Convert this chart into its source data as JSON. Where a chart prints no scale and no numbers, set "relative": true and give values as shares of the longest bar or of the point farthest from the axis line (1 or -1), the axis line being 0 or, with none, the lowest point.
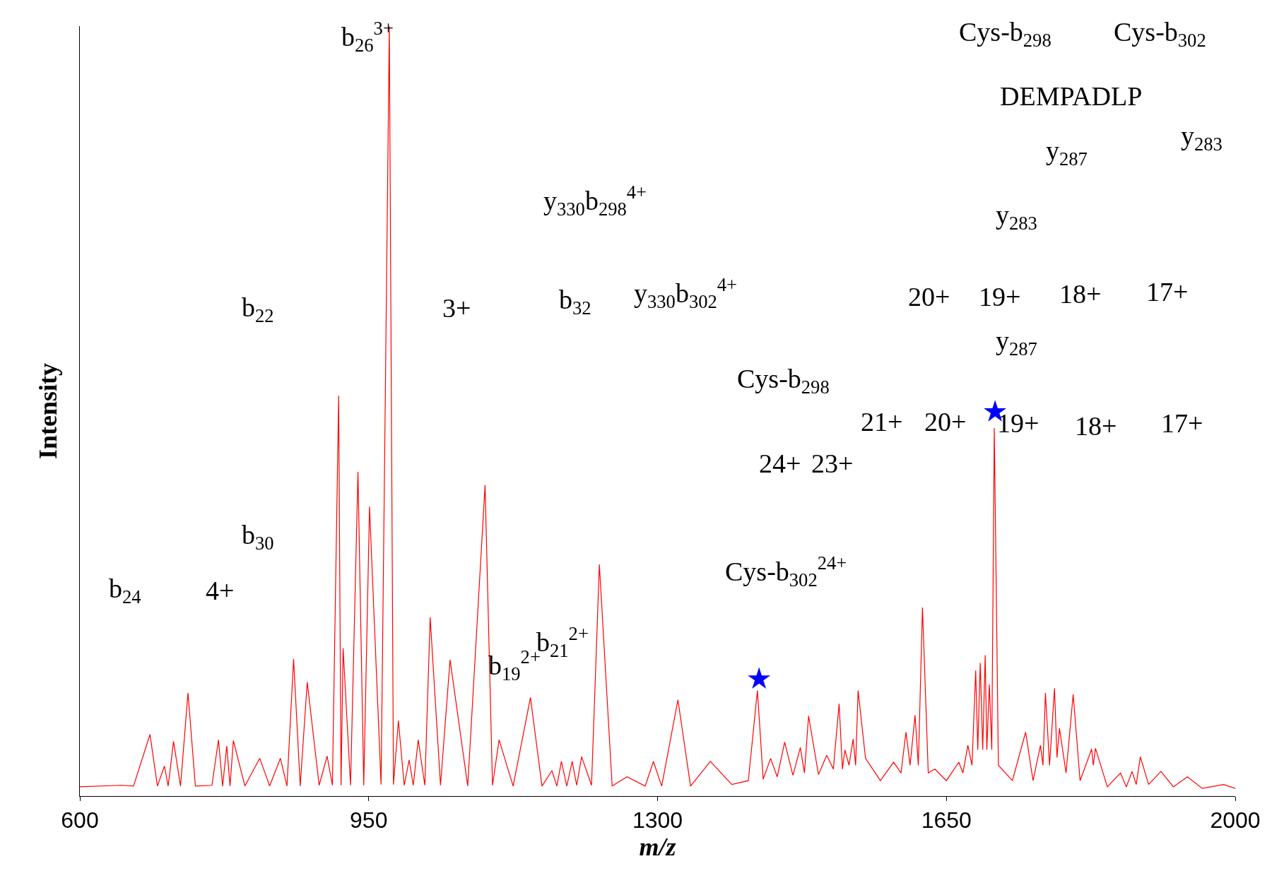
{
  "chart_data": {
    "type": "line",
    "relative": true,
    "xlabel": "m/z",
    "ylabel": "Intensity",
    "xlim": [
      600,
      2000
    ],
    "xticks": [
      600,
      950,
      1300,
      1650,
      2000
    ],
    "series": [
      {
        "color": "#ff0000",
        "x": [
          600,
          650,
          665,
          685,
          694,
          702.5,
          707,
          713.5,
          722,
          731,
          740,
          760,
          768,
          773,
          778,
          782,
          786,
          800,
          818,
          830,
          843,
          851,
          859,
          867,
          875.5,
          890,
          899.6,
          906,
          913.6,
          916.5,
          919,
          928,
          937,
          944,
          951,
          965,
          975,
          980,
          986,
          993,
          999,
          1004,
          1010,
          1018,
          1024.5,
          1037,
          1048.6,
          1070,
          1091,
          1100,
          1108,
          1125,
          1146,
          1160,
          1172,
          1178,
          1183.5,
          1190,
          1196.6,
          1202,
          1208,
          1220,
          1229.5,
          1245,
          1263,
          1285,
          1295,
          1305,
          1324.7,
          1340,
          1364,
          1390,
          1410,
          1421,
          1428,
          1437,
          1445,
          1454,
          1464,
          1473,
          1478,
          1483,
          1495,
          1505,
          1513,
          1520,
          1524,
          1527,
          1532,
          1537,
          1540,
          1543,
          1552,
          1570,
          1586,
          1595,
          1601,
          1606,
          1612,
          1616,
          1621,
          1628,
          1636,
          1650,
          1665,
          1670,
          1676,
          1681,
          1685.5,
          1688,
          1691,
          1694,
          1697,
          1699,
          1702,
          1705,
          1708,
          1713,
          1730,
          1746,
          1755,
          1764,
          1767,
          1770,
          1775,
          1781,
          1784,
          1787,
          1795,
          1803.6,
          1812,
          1826,
          1828,
          1830.6,
          1845,
          1861,
          1868,
          1875,
          1880,
          1885,
          1895,
          1910,
          1925,
          1942,
          1960,
          1986,
          2000
        ],
        "values": [
          0.012,
          0.014,
          0.013,
          0.08,
          0.013,
          0.039,
          0.013,
          0.071,
          0.013,
          0.134,
          0.013,
          0.014,
          0.073,
          0.013,
          0.065,
          0.013,
          0.072,
          0.013,
          0.049,
          0.013,
          0.049,
          0.013,
          0.178,
          0.013,
          0.148,
          0.014,
          0.052,
          0.014,
          0.52,
          0.014,
          0.192,
          0.014,
          0.421,
          0.014,
          0.376,
          0.015,
          1.0,
          0.015,
          0.098,
          0.014,
          0.047,
          0.014,
          0.073,
          0.014,
          0.232,
          0.014,
          0.177,
          0.013,
          0.404,
          0.014,
          0.073,
          0.013,
          0.128,
          0.013,
          0.033,
          0.013,
          0.045,
          0.013,
          0.045,
          0.014,
          0.051,
          0.014,
          0.301,
          0.013,
          0.025,
          0.013,
          0.045,
          0.013,
          0.125,
          0.013,
          0.045,
          0.015,
          0.02,
          0.137,
          0.022,
          0.049,
          0.025,
          0.07,
          0.027,
          0.063,
          0.03,
          0.104,
          0.028,
          0.053,
          0.035,
          0.12,
          0.035,
          0.06,
          0.04,
          0.074,
          0.04,
          0.137,
          0.049,
          0.02,
          0.044,
          0.03,
          0.083,
          0.04,
          0.105,
          0.04,
          0.245,
          0.03,
          0.035,
          0.02,
          0.044,
          0.03,
          0.066,
          0.04,
          0.163,
          0.06,
          0.173,
          0.06,
          0.183,
          0.06,
          0.145,
          0.06,
          0.478,
          0.04,
          0.02,
          0.083,
          0.02,
          0.066,
          0.04,
          0.134,
          0.04,
          0.14,
          0.05,
          0.088,
          0.03,
          0.132,
          0.02,
          0.061,
          0.04,
          0.062,
          0.012,
          0.03,
          0.012,
          0.032,
          0.015,
          0.051,
          0.015,
          0.032,
          0.012,
          0.025,
          0.01,
          0.015,
          0.01
        ]
      },
      {
        "type": "scatter",
        "marker": "star",
        "color": "#0000ff",
        "x": [
          1423,
          1709
        ],
        "values": [
          0.152,
          0.499
        ]
      }
    ],
    "annotations": [
      "b$_{26}$$^{3+}$",
      "y$_{330}$b$_{298}$$^{4+}$",
      "y$_{330}$b$_{302}$$^{4+}$",
      "b$_{22}$",
      "3+",
      "b$_{32}$",
      "b$_{30}$",
      "b$_{24}$",
      "4+",
      "b$_{19}$$^{2+}$",
      "b$_{21}$$^{2+}$",
      "Cys-b$_{298}$",
      "Cys-b$_{302}$$^{24+}$",
      "24+",
      "23+",
      "21+",
      "20+",
      "19+",
      "18+",
      "17+",
      "y$_{283}$",
      "20+",
      "19+",
      "18+",
      "17+",
      "y$_{287}$",
      "Cys-b$_{298}$",
      "Cys-b$_{302}$",
      "DEMPADLP",
      "y$_{287}$",
      "y$_{283}$"
    ]
  }
}
